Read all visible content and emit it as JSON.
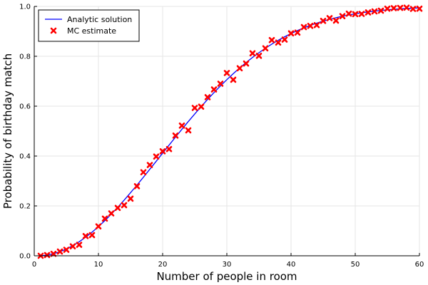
{
  "chart_data": {
    "type": "line",
    "title": "",
    "xlabel": "Number of people in room",
    "ylabel": "Probability of birthday match",
    "xlim": [
      0,
      60
    ],
    "ylim": [
      0,
      1
    ],
    "xticks": [
      0,
      10,
      20,
      30,
      40,
      50,
      60
    ],
    "yticks": [
      0.0,
      0.2,
      0.4,
      0.6,
      0.8,
      1.0
    ],
    "xtick_labels": [
      "0",
      "10",
      "20",
      "30",
      "40",
      "50",
      "60"
    ],
    "ytick_labels": [
      "0.0",
      "0.2",
      "0.4",
      "0.6",
      "0.8",
      "1.0"
    ],
    "grid": true,
    "legend_position": "top-left",
    "series": [
      {
        "name": "Analytic solution",
        "kind": "line",
        "color": "#0000ff",
        "x_range": [
          1,
          60
        ],
        "formula": "1 - prod_{k=0}^{n-1} (365 - k) / 365"
      },
      {
        "name": "MC estimate",
        "kind": "scatter",
        "marker": "x",
        "color": "#ff0000",
        "x": [
          1,
          2,
          3,
          4,
          5,
          6,
          7,
          8,
          9,
          10,
          11,
          12,
          13,
          14,
          15,
          16,
          17,
          18,
          19,
          20,
          21,
          22,
          23,
          24,
          25,
          26,
          27,
          28,
          29,
          30,
          31,
          32,
          33,
          34,
          35,
          36,
          37,
          38,
          39,
          40,
          41,
          42,
          43,
          44,
          45,
          46,
          47,
          48,
          49,
          50,
          51,
          52,
          53,
          54,
          55,
          56,
          57,
          58,
          59,
          60
        ],
        "y": [
          0.0,
          0.003,
          0.008,
          0.017,
          0.024,
          0.038,
          0.044,
          0.079,
          0.083,
          0.118,
          0.149,
          0.17,
          0.192,
          0.203,
          0.229,
          0.279,
          0.335,
          0.364,
          0.398,
          0.419,
          0.428,
          0.482,
          0.522,
          0.503,
          0.593,
          0.598,
          0.636,
          0.667,
          0.69,
          0.733,
          0.706,
          0.752,
          0.771,
          0.812,
          0.802,
          0.832,
          0.865,
          0.855,
          0.867,
          0.892,
          0.895,
          0.917,
          0.922,
          0.925,
          0.942,
          0.953,
          0.943,
          0.961,
          0.971,
          0.969,
          0.97,
          0.976,
          0.98,
          0.983,
          0.991,
          0.993,
          0.994,
          0.995,
          0.99,
          0.991
        ]
      }
    ]
  }
}
